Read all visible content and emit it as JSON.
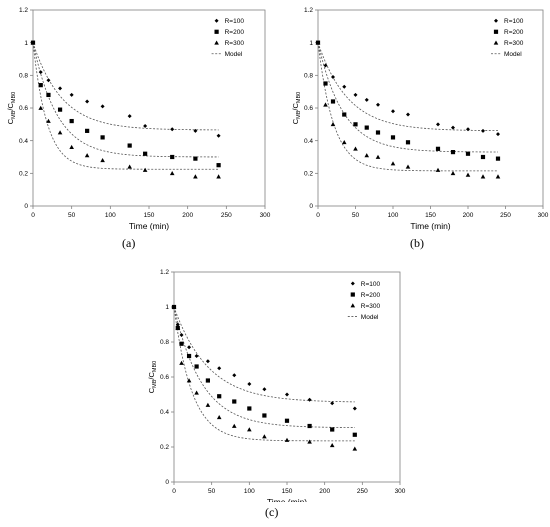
{
  "chart_data": [
    {
      "type": "scatter",
      "panel_label": "(a)",
      "xlabel": "Time (min)",
      "ylabel_main": "C",
      "ylabel_sub1": "MB",
      "ylabel_mid": "/C",
      "ylabel_sub2": "MB0",
      "xlim": [
        0,
        300
      ],
      "ylim": [
        0,
        1.2
      ],
      "xticks": [
        "0",
        "50",
        "100",
        "150",
        "200",
        "250",
        "300"
      ],
      "yticks": [
        "0",
        "0.2",
        "0.4",
        "0.6",
        "0.8",
        "1",
        "1.2"
      ],
      "grid": false,
      "legend_position": "top-right",
      "series": [
        {
          "name": "R=100",
          "marker": "diamond",
          "x": [
            0,
            10,
            20,
            35,
            50,
            70,
            90,
            125,
            145,
            180,
            210,
            240
          ],
          "y": [
            1,
            0.82,
            0.77,
            0.72,
            0.68,
            0.64,
            0.61,
            0.55,
            0.49,
            0.47,
            0.46,
            0.43
          ]
        },
        {
          "name": "R=200",
          "marker": "square",
          "x": [
            0,
            10,
            20,
            35,
            50,
            70,
            90,
            125,
            145,
            180,
            210,
            240
          ],
          "y": [
            1,
            0.74,
            0.68,
            0.59,
            0.52,
            0.46,
            0.42,
            0.37,
            0.32,
            0.3,
            0.29,
            0.25
          ]
        },
        {
          "name": "R=300",
          "marker": "triangle",
          "x": [
            0,
            10,
            20,
            35,
            50,
            70,
            90,
            125,
            145,
            180,
            210,
            240
          ],
          "y": [
            1,
            0.6,
            0.52,
            0.45,
            0.36,
            0.31,
            0.28,
            0.24,
            0.22,
            0.2,
            0.18,
            0.18
          ]
        }
      ],
      "models": [
        {
          "name": "Model",
          "c_inf": 0.465,
          "k": 0.027
        },
        {
          "c_inf": 0.3,
          "k": 0.032
        },
        {
          "c_inf": 0.225,
          "k": 0.055
        }
      ]
    },
    {
      "type": "scatter",
      "panel_label": "(b)",
      "xlabel": "Time (min)",
      "ylabel_main": "C",
      "ylabel_sub1": "MB",
      "ylabel_mid": "/C",
      "ylabel_sub2": "MB0",
      "xlim": [
        0,
        300
      ],
      "ylim": [
        0,
        1.2
      ],
      "xticks": [
        "0",
        "50",
        "100",
        "150",
        "200",
        "250",
        "300"
      ],
      "yticks": [
        "0",
        "0.2",
        "0.4",
        "0.6",
        "0.8",
        "1",
        "1.2"
      ],
      "grid": false,
      "legend_position": "top-right",
      "series": [
        {
          "name": "R=100",
          "marker": "diamond",
          "x": [
            0,
            10,
            20,
            35,
            50,
            65,
            80,
            100,
            120,
            160,
            180,
            200,
            220,
            240
          ],
          "y": [
            1,
            0.86,
            0.79,
            0.73,
            0.68,
            0.65,
            0.62,
            0.58,
            0.56,
            0.5,
            0.48,
            0.47,
            0.46,
            0.44
          ]
        },
        {
          "name": "R=200",
          "marker": "square",
          "x": [
            0,
            10,
            20,
            35,
            50,
            65,
            80,
            100,
            120,
            160,
            180,
            200,
            220,
            240
          ],
          "y": [
            1,
            0.75,
            0.64,
            0.56,
            0.5,
            0.48,
            0.45,
            0.42,
            0.39,
            0.35,
            0.33,
            0.32,
            0.3,
            0.29
          ]
        },
        {
          "name": "R=300",
          "marker": "triangle",
          "x": [
            0,
            10,
            20,
            35,
            50,
            65,
            80,
            100,
            120,
            160,
            180,
            200,
            220,
            240
          ],
          "y": [
            1,
            0.62,
            0.5,
            0.39,
            0.35,
            0.31,
            0.3,
            0.26,
            0.24,
            0.22,
            0.2,
            0.19,
            0.18,
            0.18
          ]
        }
      ],
      "models": [
        {
          "name": "Model",
          "c_inf": 0.46,
          "k": 0.025
        },
        {
          "c_inf": 0.33,
          "k": 0.03
        },
        {
          "c_inf": 0.215,
          "k": 0.048
        }
      ]
    },
    {
      "type": "scatter",
      "panel_label": "(c)",
      "xlabel": "Time (min)",
      "ylabel_main": "C",
      "ylabel_sub1": "MB",
      "ylabel_mid": "/C",
      "ylabel_sub2": "MB0",
      "xlim": [
        0,
        300
      ],
      "ylim": [
        0,
        1.2
      ],
      "xticks": [
        "0",
        "50",
        "100",
        "150",
        "200",
        "250",
        "300"
      ],
      "yticks": [
        "0",
        "0.2",
        "0.4",
        "0.6",
        "0.8",
        "1",
        "1.2"
      ],
      "grid": false,
      "legend_position": "top-right",
      "series": [
        {
          "name": "R=100",
          "marker": "diamond",
          "x": [
            0,
            5,
            10,
            20,
            30,
            45,
            60,
            80,
            100,
            120,
            150,
            180,
            210,
            240
          ],
          "y": [
            1,
            0.9,
            0.84,
            0.77,
            0.72,
            0.69,
            0.65,
            0.61,
            0.56,
            0.53,
            0.5,
            0.47,
            0.45,
            0.42
          ]
        },
        {
          "name": "R=200",
          "marker": "square",
          "x": [
            0,
            5,
            10,
            20,
            30,
            45,
            60,
            80,
            100,
            120,
            150,
            180,
            210,
            240
          ],
          "y": [
            1,
            0.88,
            0.79,
            0.72,
            0.66,
            0.58,
            0.49,
            0.46,
            0.42,
            0.38,
            0.35,
            0.32,
            0.3,
            0.27
          ]
        },
        {
          "name": "R=300",
          "marker": "triangle",
          "x": [
            0,
            5,
            10,
            20,
            30,
            45,
            60,
            80,
            100,
            120,
            150,
            180,
            210,
            240
          ],
          "y": [
            1,
            0.88,
            0.68,
            0.58,
            0.51,
            0.44,
            0.37,
            0.32,
            0.3,
            0.26,
            0.24,
            0.23,
            0.21,
            0.19
          ]
        }
      ],
      "models": [
        {
          "name": "Model",
          "c_inf": 0.455,
          "k": 0.022
        },
        {
          "c_inf": 0.31,
          "k": 0.027
        },
        {
          "c_inf": 0.235,
          "k": 0.042
        }
      ]
    }
  ]
}
